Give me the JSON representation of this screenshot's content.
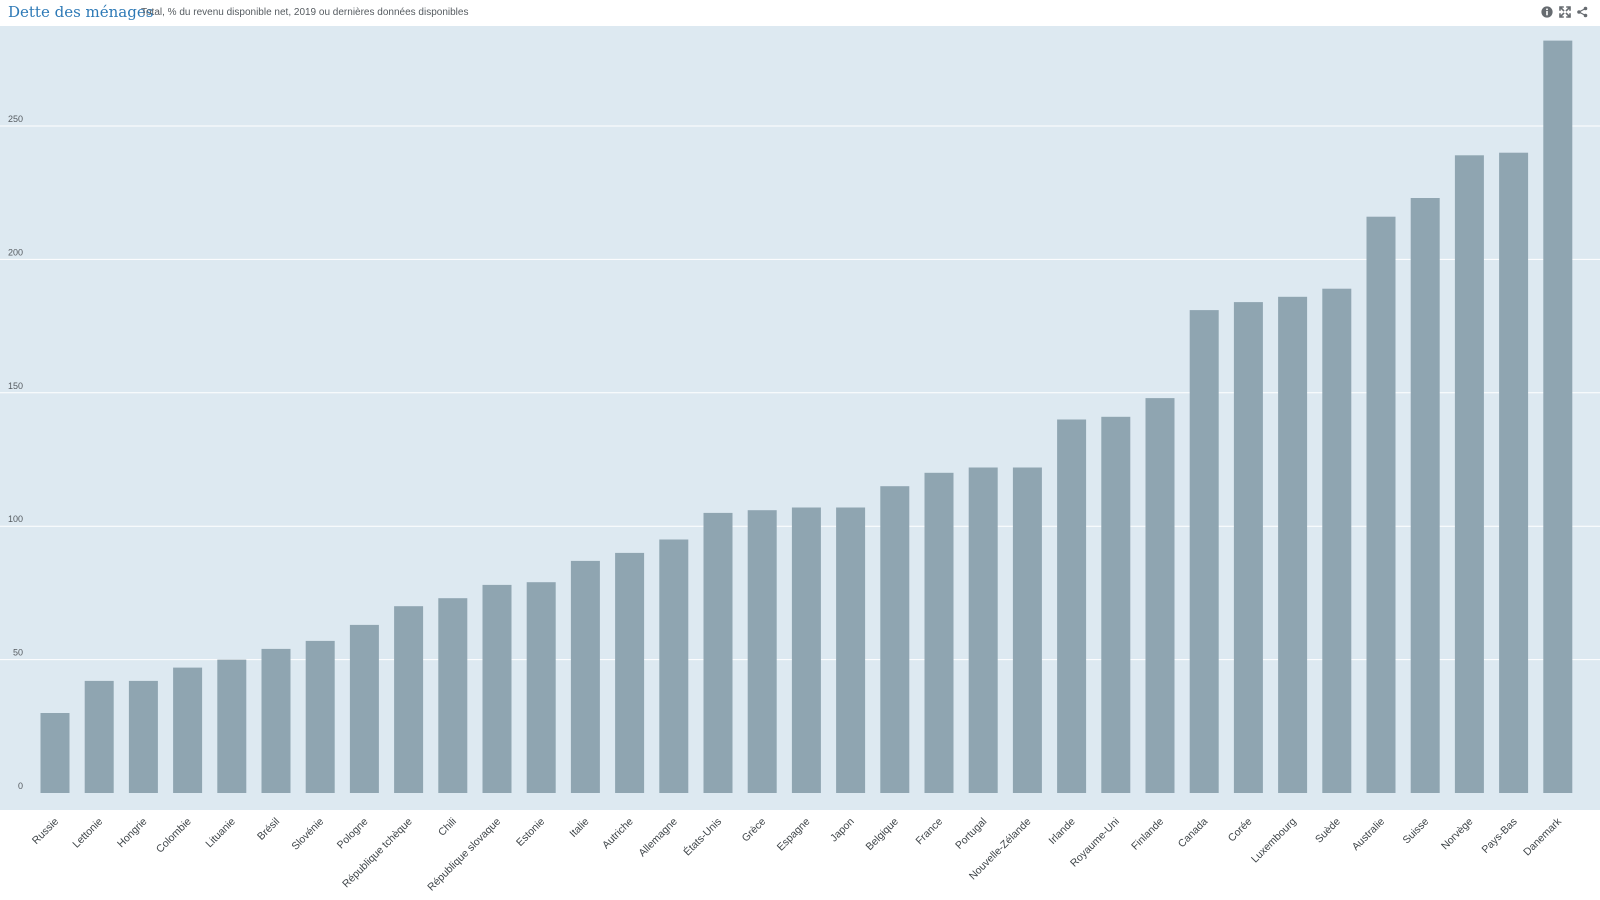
{
  "header": {
    "title": "Dette des ménages",
    "subtitle": "Total, % du revenu disponible net, 2019 ou dernières données disponibles"
  },
  "toolbar": {
    "icons": [
      "info-icon",
      "expand-icon",
      "share-icon"
    ]
  },
  "colors": {
    "plot_background": "#dde9f1",
    "bar": "#8fa5b1",
    "title": "#2d79b6",
    "gridline": "#ffffff"
  },
  "chart_data": {
    "type": "bar",
    "title": "Dette des ménages",
    "subtitle": "Total, % du revenu disponible net, 2019 ou dernières données disponibles",
    "categories": [
      "Russie",
      "Lettonie",
      "Hongrie",
      "Colombie",
      "Lituanie",
      "Brésil",
      "Slovénie",
      "Pologne",
      "République tchèque",
      "Chili",
      "République slovaque",
      "Estonie",
      "Italie",
      "Autriche",
      "Allemagne",
      "États-Unis",
      "Grèce",
      "Espagne",
      "Japon",
      "Belgique",
      "France",
      "Portugal",
      "Nouvelle-Zélande",
      "Irlande",
      "Royaume-Uni",
      "Finlande",
      "Canada",
      "Corée",
      "Luxembourg",
      "Suède",
      "Australie",
      "Suisse",
      "Norvège",
      "Pays-Bas",
      "Danemark"
    ],
    "values": [
      30,
      42,
      42,
      47,
      50,
      54,
      57,
      63,
      70,
      73,
      78,
      79,
      87,
      90,
      95,
      105,
      106,
      107,
      107,
      115,
      120,
      122,
      122,
      140,
      141,
      148,
      181,
      184,
      186,
      189,
      216,
      223,
      239,
      240,
      282
    ],
    "yticks": [
      0,
      50,
      100,
      150,
      200,
      250
    ],
    "ylim": [
      0,
      290
    ],
    "xlabel": "",
    "ylabel": "",
    "grid": true,
    "legend": "none"
  }
}
